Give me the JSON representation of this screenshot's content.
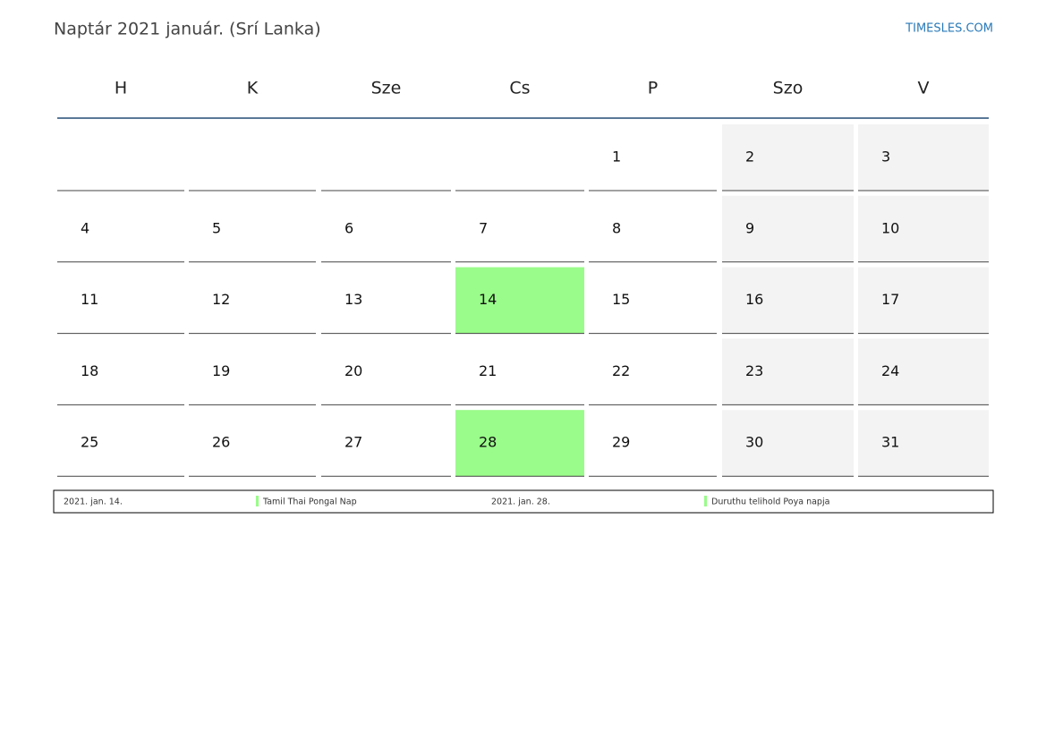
{
  "header": {
    "title": "Naptár 2021 január. (Srí Lanka)",
    "site": "TIMESLES.COM"
  },
  "calendar": {
    "weekend_color": "#f3f3f3",
    "holiday_color": "#9afc8a",
    "days_of_week": [
      {
        "label": "H",
        "weekend": false
      },
      {
        "label": "K",
        "weekend": false
      },
      {
        "label": "Sze",
        "weekend": false
      },
      {
        "label": "Cs",
        "weekend": false
      },
      {
        "label": "P",
        "weekend": false
      },
      {
        "label": "Szo",
        "weekend": true
      },
      {
        "label": "V",
        "weekend": true
      }
    ],
    "weeks": [
      [
        null,
        null,
        null,
        null,
        1,
        2,
        3
      ],
      [
        4,
        5,
        6,
        7,
        8,
        9,
        10
      ],
      [
        11,
        12,
        13,
        {
          "day": 14,
          "holiday": true
        },
        15,
        16,
        17
      ],
      [
        18,
        19,
        20,
        21,
        22,
        23,
        24
      ],
      [
        25,
        26,
        27,
        {
          "day": 28,
          "holiday": true
        },
        29,
        30,
        31
      ]
    ]
  },
  "holidays": [
    {
      "date": "2021. jan. 14.",
      "name": "Tamil Thai Pongal Nap"
    },
    {
      "date": "2021. jan. 28.",
      "name": "Duruthu telihold Poya napja"
    }
  ]
}
